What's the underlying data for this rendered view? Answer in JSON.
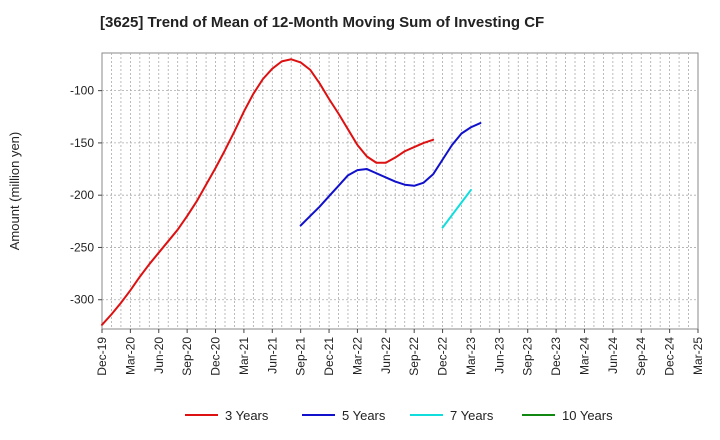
{
  "chart_data": {
    "type": "line",
    "title": "[3625]  Trend of Mean of 12-Month Moving Sum of Investing CF",
    "xlabel": "",
    "ylabel": "Amount (million yen)",
    "ylim": [
      -328,
      -64
    ],
    "yticks": [
      -100,
      -150,
      -200,
      -250,
      -300
    ],
    "ytick_labels": [
      "-100",
      "-150",
      "-200",
      "-250",
      "-300"
    ],
    "xtick_labels": [
      "Dec-19",
      "Mar-20",
      "Jun-20",
      "Sep-20",
      "Dec-20",
      "Mar-21",
      "Jun-21",
      "Sep-21",
      "Dec-21",
      "Mar-22",
      "Jun-22",
      "Sep-22",
      "Dec-22",
      "Mar-23",
      "Jun-23",
      "Sep-23",
      "Dec-23",
      "Mar-24",
      "Jun-24",
      "Sep-24",
      "Dec-24",
      "Mar-25"
    ],
    "grid": true,
    "legend_position": "bottom",
    "series": [
      {
        "name": "3 Years",
        "color": "#dd1111",
        "x_start": 0,
        "values": [
          -324,
          -314,
          -303,
          -291,
          -278,
          -266,
          -255,
          -244,
          -233,
          -220,
          -206,
          -190,
          -174,
          -157,
          -139,
          -120,
          -103,
          -89,
          -79,
          -72,
          -70,
          -73,
          -80,
          -93,
          -108,
          -122,
          -137,
          -152,
          -163,
          -169,
          -169,
          -164,
          -158,
          -154,
          -150,
          -147
        ]
      },
      {
        "name": "5 Years",
        "color": "#1111cc",
        "x_start": 21,
        "values": [
          -229,
          -220,
          -211,
          -201,
          -191,
          -181,
          -176,
          -175,
          -179,
          -183,
          -187,
          -190,
          -191,
          -188,
          -180,
          -166,
          -152,
          -141,
          -135,
          -131
        ]
      },
      {
        "name": "7 Years",
        "color": "#11dddd",
        "x_start": 36,
        "values": [
          -231,
          -219,
          -207,
          -195
        ]
      },
      {
        "name": "10 Years",
        "color": "#118811",
        "x_start": 0,
        "values": []
      }
    ]
  }
}
